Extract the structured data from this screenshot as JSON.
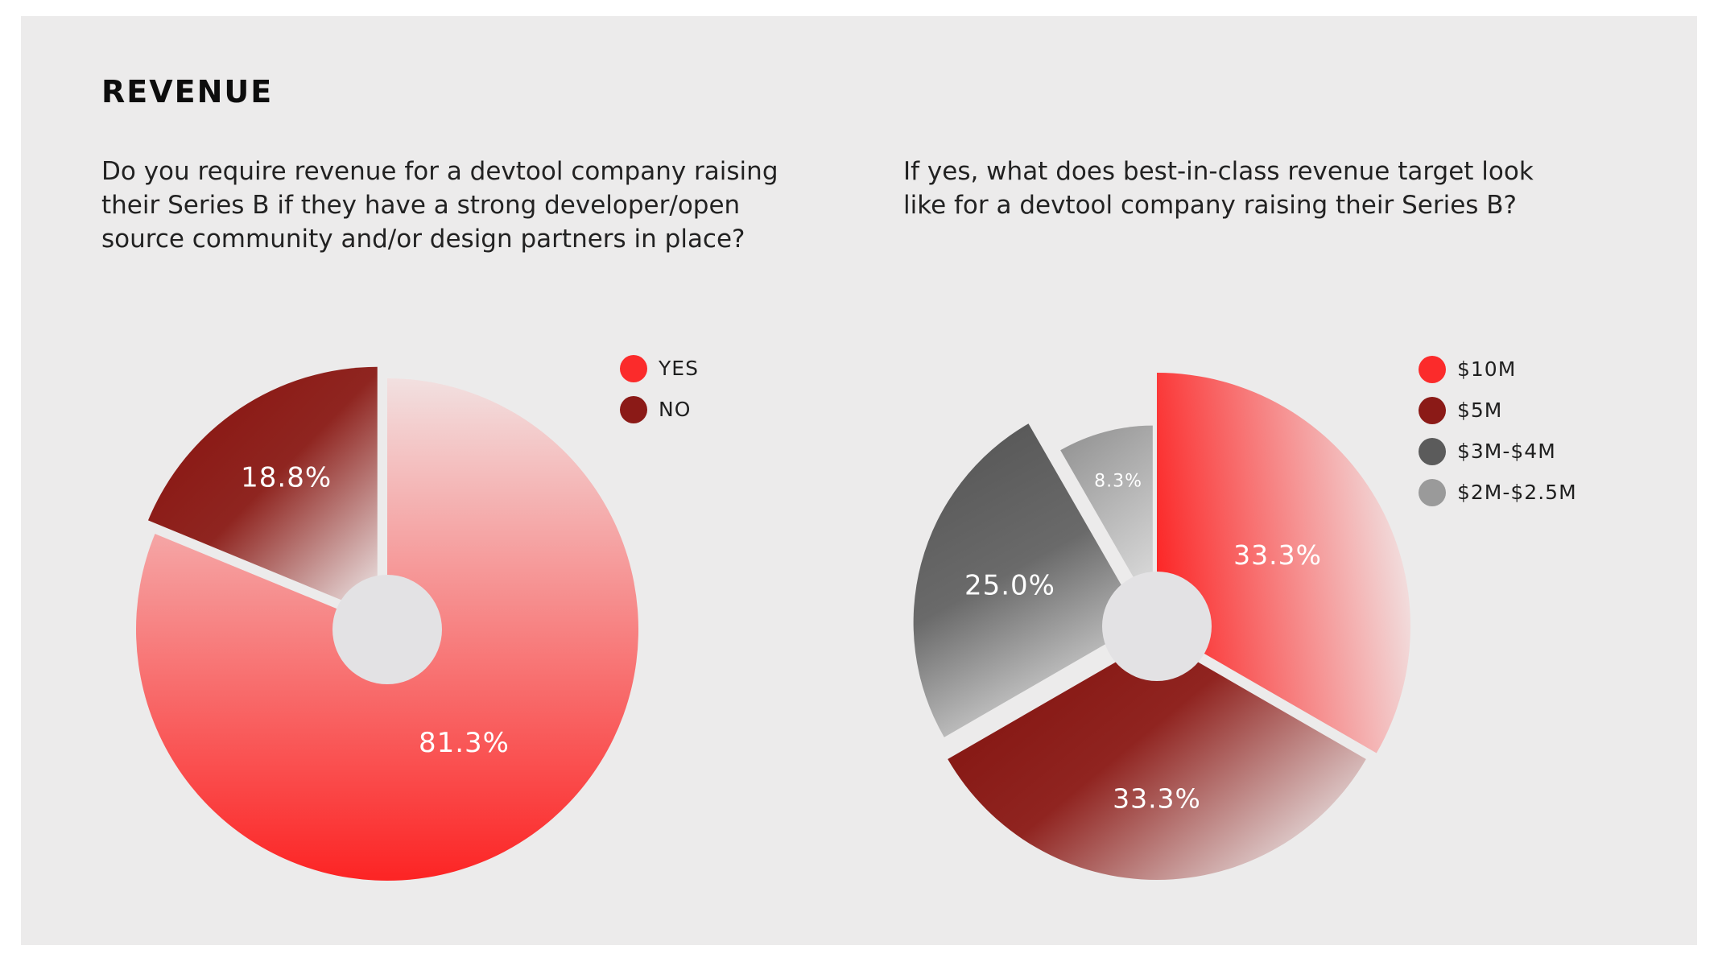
{
  "section": {
    "title": "REVENUE"
  },
  "chart_data": [
    {
      "type": "pie",
      "question": "Do you require revenue for a devtool company raising their Series B if they have a strong developer/open source community and/or design partners in place?",
      "categories": [
        "YES",
        "NO"
      ],
      "values": [
        81.3,
        18.8
      ],
      "labels": [
        "81.3%",
        "18.8%"
      ],
      "colors": [
        "#fb2b2b",
        "#8b1a17"
      ],
      "legend_position": "top-right"
    },
    {
      "type": "pie",
      "question": "If yes, what does best-in-class revenue target look like for a devtool company raising their Series B?",
      "categories": [
        "$10M",
        "$5M",
        "$3M-$4M",
        "$2M-$2.5M"
      ],
      "values": [
        33.3,
        33.3,
        25.0,
        8.3
      ],
      "labels": [
        "33.3%",
        "33.3%",
        "25.0%",
        "8.3%"
      ],
      "colors": [
        "#fb2b2b",
        "#8b1a17",
        "#5b5b5b",
        "#9a9a9a"
      ],
      "legend_position": "top-right"
    }
  ]
}
